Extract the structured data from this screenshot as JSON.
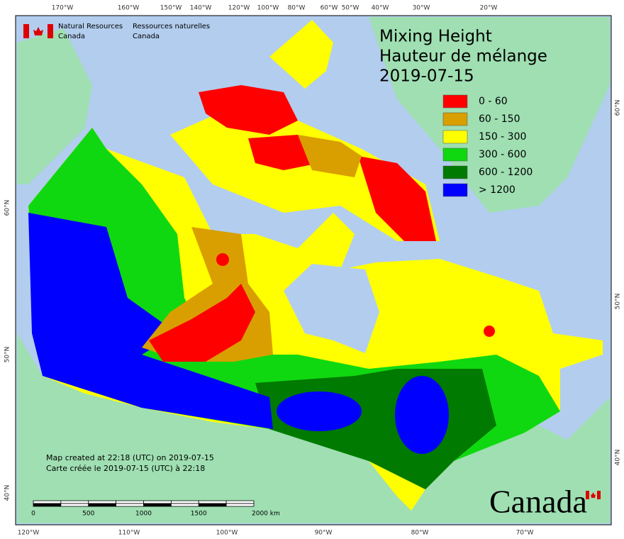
{
  "header": {
    "org_en": [
      "Natural Resources",
      "Canada"
    ],
    "org_fr": [
      "Ressources naturelles",
      "Canada"
    ]
  },
  "title": [
    "Mixing Height",
    "Hauteur de mélange",
    "2019-07-15"
  ],
  "legend": [
    {
      "label": "0 - 60",
      "color": "#ff0000"
    },
    {
      "label": "60 - 150",
      "color": "#d99f00"
    },
    {
      "label": "150 - 300",
      "color": "#ffff00"
    },
    {
      "label": "300 - 600",
      "color": "#10d810"
    },
    {
      "label": "600 - 1200",
      "color": "#007a00"
    },
    {
      "label": "> 1200",
      "color": "#0000ff"
    }
  ],
  "graticule": {
    "top": [
      "170°W",
      "160°W",
      "150°W",
      "140°W",
      "120°W",
      "100°W",
      "80°W",
      "60°W",
      "50°W",
      "40°W",
      "30°W",
      "20°W"
    ],
    "bottom": [
      "120°W",
      "110°W",
      "100°W",
      "90°W",
      "80°W",
      "70°W"
    ],
    "left": [
      "60°N",
      "50°N",
      "40°N"
    ],
    "right": [
      "60°N",
      "50°N",
      "40°N"
    ]
  },
  "notes": [
    "Map created at 22:18 (UTC) on 2019-07-15",
    "Carte créée le 2019-07-15 (UTC) à 22:18"
  ],
  "scale_bar": [
    "0",
    "500",
    "1000",
    "1500",
    "2000 km"
  ],
  "wordmark": "Canada"
}
